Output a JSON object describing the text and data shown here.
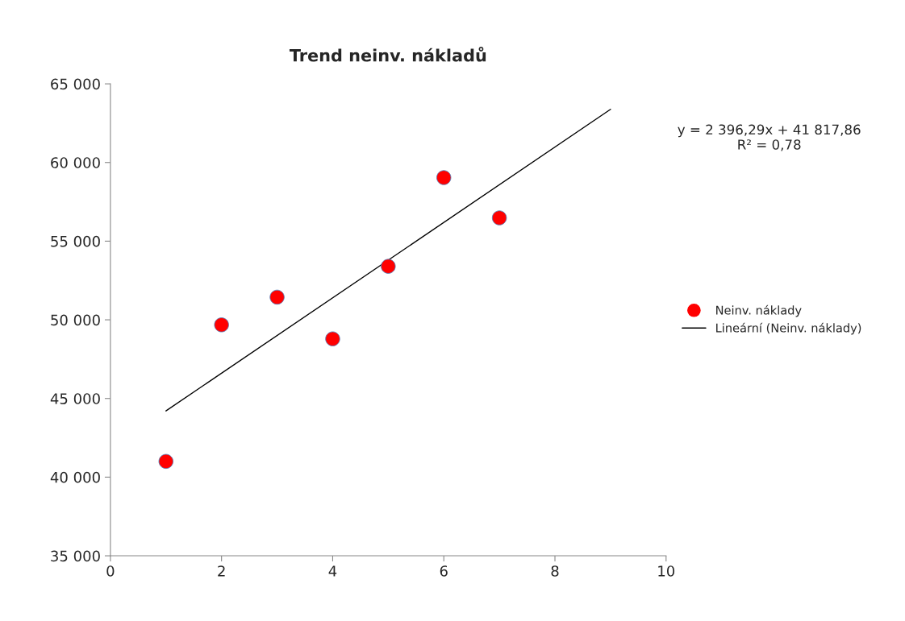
{
  "chart_data": {
    "type": "scatter",
    "title": "Trend neinv. nákladů",
    "x": [
      1,
      2,
      3,
      4,
      5,
      6,
      7
    ],
    "series": [
      {
        "name": "Neinv. náklady",
        "color": "#ff0000",
        "marker": "circle",
        "values": [
          41000,
          49680,
          51440,
          48790,
          53400,
          59040,
          56480
        ]
      },
      {
        "name": "Lineární (Neinv. náklady)",
        "type": "line",
        "color": "#000000",
        "x": [
          1,
          9
        ],
        "values": [
          44210,
          63380
        ],
        "line_style": "solid",
        "marker": "none"
      }
    ],
    "annotations": [
      "y = 2 396,29x + 41 817,86\nR² = 0,78"
    ],
    "xlim": [
      0,
      10
    ],
    "xticks": [
      0,
      2,
      4,
      6,
      8,
      10
    ],
    "ylim": [
      35000,
      65000
    ],
    "yticks": [
      {
        "value": 35000,
        "label": "35 000"
      },
      {
        "value": 40000,
        "label": "40 000"
      },
      {
        "value": 45000,
        "label": "45 000"
      },
      {
        "value": 50000,
        "label": "50 000"
      },
      {
        "value": 55000,
        "label": "55 000"
      },
      {
        "value": 60000,
        "label": "60 000"
      },
      {
        "value": 65000,
        "label": "65 000"
      }
    ],
    "grid": false,
    "legend": "right"
  }
}
